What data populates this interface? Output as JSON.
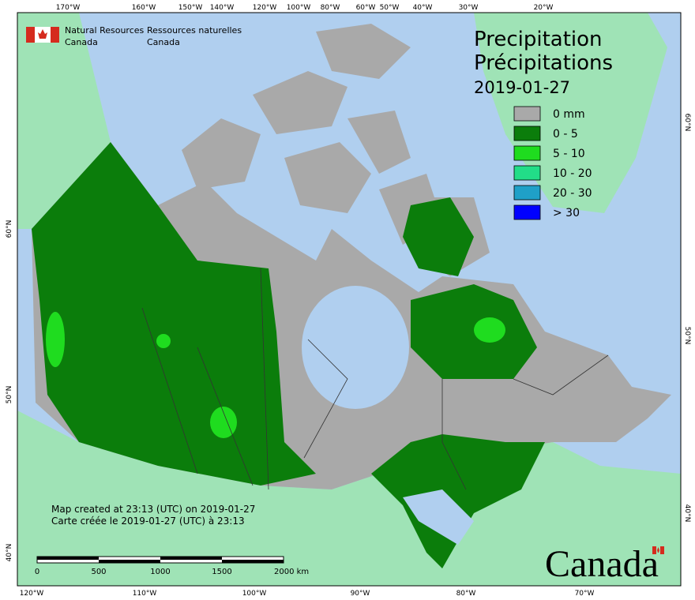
{
  "header": {
    "agency_en": [
      "Natural Resources",
      "Canada"
    ],
    "agency_fr": [
      "Ressources naturelles",
      "Canada"
    ]
  },
  "title": {
    "en": "Precipitation",
    "fr": "Précipitations",
    "date": "2019-01-27"
  },
  "legend": [
    {
      "label": "0 mm",
      "color": "#a9a9a9"
    },
    {
      "label": "0 - 5",
      "color": "#0b7d0b"
    },
    {
      "label": "5 - 10",
      "color": "#1fdc1f"
    },
    {
      "label": "10 - 20",
      "color": "#22dd88"
    },
    {
      "label": "20 - 30",
      "color": "#1fa0c8"
    },
    {
      "label": "> 30",
      "color": "#0000ff"
    }
  ],
  "graticule": {
    "top": [
      "170°W",
      "160°W",
      "150°W",
      "140°W",
      "120°W",
      "100°W",
      "80°W",
      "60°W",
      "50°W",
      "40°W",
      "30°W",
      "20°W"
    ],
    "bottom": [
      "120°W",
      "110°W",
      "100°W",
      "90°W",
      "80°W",
      "70°W"
    ],
    "left": [
      "60°N",
      "50°N",
      "40°N"
    ],
    "right": [
      "60°N",
      "50°N",
      "40°N"
    ]
  },
  "notes": [
    "Map created at 23:13 (UTC) on 2019-01-27",
    "Carte créée le 2019-01-27 (UTC) à 23:13"
  ],
  "scale_bar": {
    "labels": [
      "0",
      "500",
      "1000",
      "1500",
      "2000 km"
    ]
  },
  "wordmark": "Canada"
}
